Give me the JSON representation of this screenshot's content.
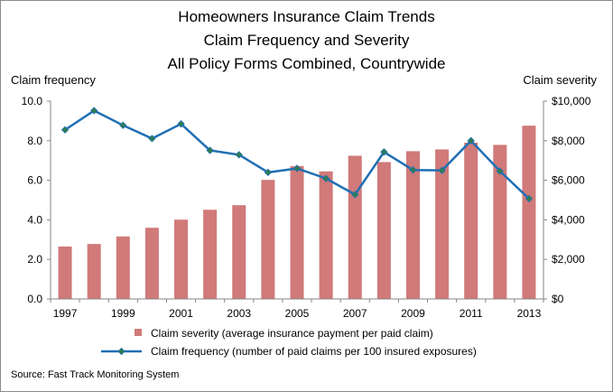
{
  "chart_data": {
    "type": "bar+line",
    "title": "Homeowners Insurance Claim Trends",
    "subtitle_lines": [
      "Claim Frequency and Severity",
      "All Policy Forms Combined, Countrywide"
    ],
    "y_left_label": "Claim frequency",
    "y_right_label": "Claim severity",
    "years": [
      1997,
      1998,
      1999,
      2000,
      2001,
      2002,
      2003,
      2004,
      2005,
      2006,
      2007,
      2008,
      2009,
      2010,
      2011,
      2012,
      2013
    ],
    "x_tick_labels": [
      "1997",
      "1999",
      "2001",
      "2003",
      "2005",
      "2007",
      "2009",
      "2011",
      "2013"
    ],
    "y_left_ticks": [
      "0.0",
      "2.0",
      "4.0",
      "6.0",
      "8.0",
      "10.0"
    ],
    "y_right_ticks": [
      "$0",
      "$2,000",
      "$4,000",
      "$6,000",
      "$8,000",
      "$10,000"
    ],
    "y_left_range": [
      0,
      10
    ],
    "y_right_range": [
      0,
      10000
    ],
    "grid": false,
    "legend_position": "bottom",
    "series": [
      {
        "name": "Claim severity (average insurance payment per paid claim)",
        "kind": "bar",
        "axis": "right",
        "color": "#d07a79",
        "values": [
          2650,
          2780,
          3160,
          3600,
          4010,
          4510,
          4740,
          6020,
          6720,
          6450,
          7240,
          6920,
          7470,
          7560,
          7900,
          7790,
          8760
        ]
      },
      {
        "name": "Claim frequency (number of paid claims per 100 insured exposures)",
        "kind": "line",
        "axis": "left",
        "color": "#1f6fb4",
        "marker_color": "#2e7d4f",
        "values": [
          8.55,
          9.52,
          8.78,
          8.11,
          8.85,
          7.51,
          7.29,
          6.4,
          6.6,
          6.09,
          5.28,
          7.43,
          6.52,
          6.5,
          8.0,
          6.46,
          5.07
        ]
      }
    ]
  },
  "source": "Source: Fast Track Monitoring System"
}
